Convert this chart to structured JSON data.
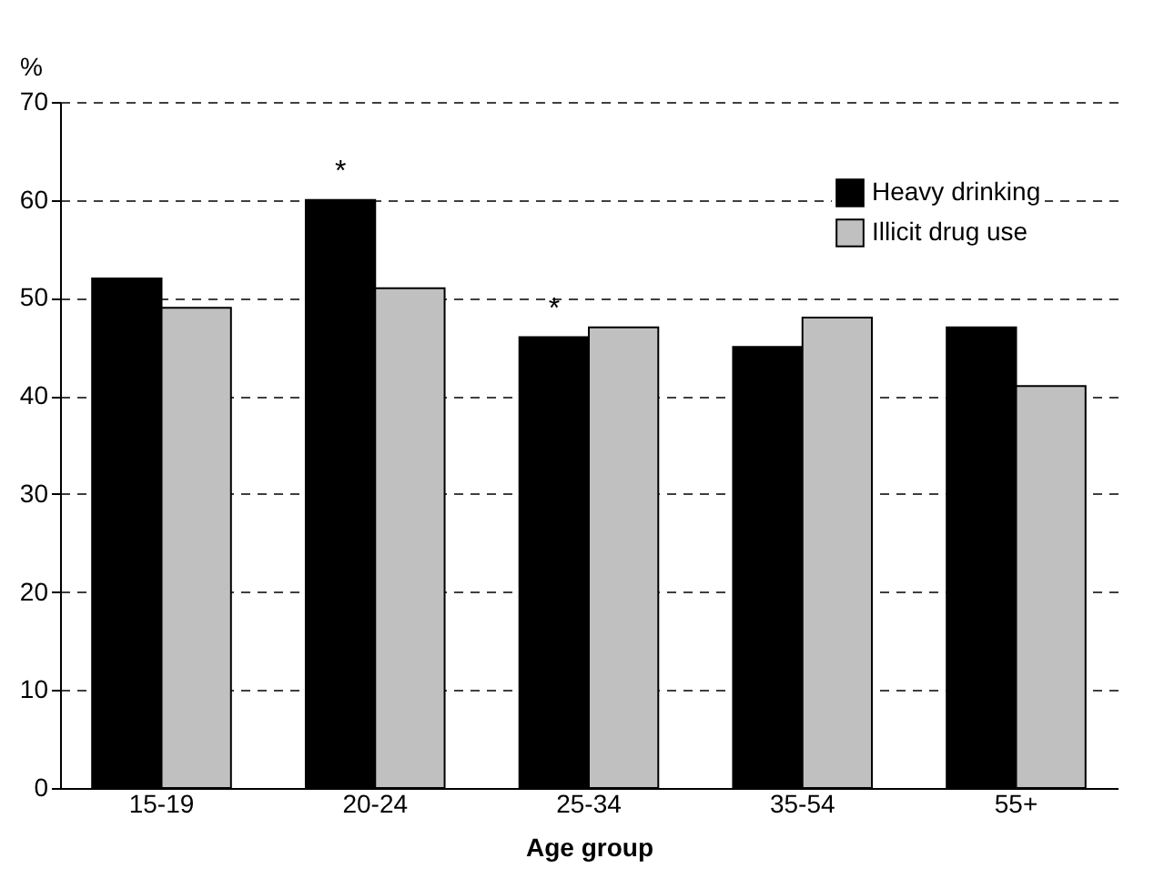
{
  "chart_data": {
    "type": "bar",
    "xlabel": "Age group",
    "ylabel": "%",
    "categories": [
      "15-19",
      "20-24",
      "25-34",
      "35-54",
      "55+"
    ],
    "series": [
      {
        "name": "Heavy drinking",
        "color": "#000000",
        "values": [
          52,
          60,
          46,
          45,
          47
        ]
      },
      {
        "name": "Illicit drug use",
        "color": "#c0c0c0",
        "values": [
          49,
          51,
          47,
          48,
          41
        ]
      }
    ],
    "ylim": [
      0,
      70
    ],
    "yticks": [
      0,
      10,
      20,
      30,
      40,
      50,
      60,
      70
    ],
    "grid": "y",
    "legend": "top right",
    "annotations": [
      {
        "text": "*",
        "x": "20-24",
        "y": 60
      },
      {
        "text": "*",
        "x": "25-34",
        "y": 46
      }
    ]
  }
}
